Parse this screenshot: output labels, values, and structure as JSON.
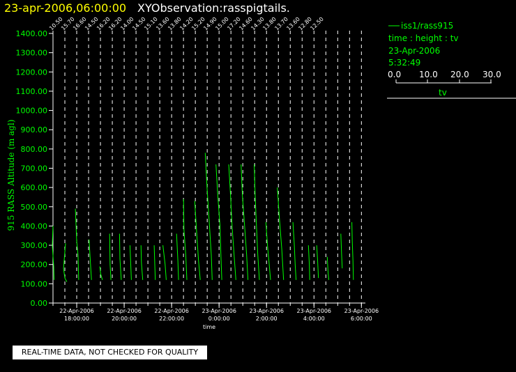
{
  "header": {
    "date_time": "23-apr-2006,06:00:00",
    "title": "XYObservation:rasspigtails."
  },
  "legend": {
    "series_label": "iss1/rass915",
    "axes_desc": "time : height : tv",
    "date": "23-Apr-2006",
    "time": "5:32:49",
    "scale_ticks": [
      "0.0",
      "10.0",
      "20.0",
      "30.0"
    ],
    "scale_label": "tv"
  },
  "notice": "REAL-TIME DATA, NOT CHECKED FOR QUALITY",
  "colors": {
    "data": "#00ff00",
    "text": "#ffffff",
    "date": "#ffff00",
    "background": "#000000"
  },
  "chart_data": {
    "type": "line",
    "ylabel": "915 RASS Altitude (m agl)",
    "xlabel": "time",
    "ylim": [
      0,
      1400
    ],
    "yticks": [
      "0.00",
      "100.00",
      "200.00",
      "300.00",
      "400.00",
      "500.00",
      "600.00",
      "700.00",
      "800.00",
      "900.00",
      "1000.00",
      "1100.00",
      "1200.00",
      "1300.00",
      "1400.00"
    ],
    "xlim": [
      "22-Apr-2006 17:00:00",
      "23-Apr-2006 06:10:00"
    ],
    "xticks": [
      {
        "t": "22-Apr-2006 18:00:00",
        "date": "22-Apr-2006",
        "time": "18:00:00"
      },
      {
        "t": "22-Apr-2006 20:00:00",
        "date": "22-Apr-2006",
        "time": "20:00:00"
      },
      {
        "t": "22-Apr-2006 22:00:00",
        "date": "22-Apr-2006",
        "time": "22:00:00"
      },
      {
        "t": "23-Apr-2006 00:00:00",
        "date": "23-Apr-2006",
        "time": "0:00:00"
      },
      {
        "t": "23-Apr-2006 02:00:00",
        "date": "23-Apr-2006",
        "time": "2:00:00"
      },
      {
        "t": "23-Apr-2006 04:00:00",
        "date": "23-Apr-2006",
        "time": "4:00:00"
      },
      {
        "t": "23-Apr-2006 06:00:00",
        "date": "23-Apr-2006",
        "time": "6:00:00"
      }
    ],
    "profiles": [
      {
        "time": "22-Apr-2006 17:00:00",
        "label": "10.50",
        "points": [
          [
            400,
            0.0
          ],
          [
            300,
            -0.3
          ],
          [
            190,
            0.3
          ],
          [
            120,
            0.5
          ]
        ]
      },
      {
        "time": "22-Apr-2006 17:30:00",
        "label": "15.70",
        "points": [
          [
            310,
            0.3
          ],
          [
            180,
            -0.6
          ],
          [
            130,
            0.0
          ],
          [
            110,
            0.9
          ]
        ]
      },
      {
        "time": "22-Apr-2006 18:00:00",
        "label": "16.60",
        "points": [
          [
            490,
            -0.6
          ],
          [
            320,
            0.0
          ],
          [
            250,
            0.6
          ],
          [
            120,
            0.9
          ]
        ]
      },
      {
        "time": "22-Apr-2006 18:30:00",
        "label": "14.50",
        "points": [
          [
            330,
            0.2
          ],
          [
            250,
            0.6
          ],
          [
            120,
            1.3
          ]
        ]
      },
      {
        "time": "22-Apr-2006 19:00:00",
        "label": "16.20",
        "points": [
          [
            190,
            -0.3
          ],
          [
            150,
            0.1
          ],
          [
            120,
            0.9
          ]
        ]
      },
      {
        "time": "22-Apr-2006 19:30:00",
        "label": "16.20",
        "points": [
          [
            360,
            -1.2
          ],
          [
            200,
            -1.0
          ],
          [
            120,
            -0.6
          ]
        ]
      },
      {
        "time": "22-Apr-2006 20:00:00",
        "label": "14.00",
        "points": [
          [
            360,
            -2.1
          ],
          [
            230,
            -1.9
          ],
          [
            120,
            -1.3
          ]
        ]
      },
      {
        "time": "22-Apr-2006 20:30:00",
        "label": "14.50",
        "points": [
          [
            300,
            -2.7
          ],
          [
            120,
            -2.1
          ]
        ]
      },
      {
        "time": "22-Apr-2006 21:00:00",
        "label": "15.10",
        "points": [
          [
            300,
            -3.1
          ],
          [
            210,
            -2.9
          ],
          [
            120,
            -2.3
          ]
        ]
      },
      {
        "time": "22-Apr-2006 21:30:00",
        "label": "13.60",
        "points": [
          [
            300,
            -2.5
          ],
          [
            120,
            -2.0
          ]
        ]
      },
      {
        "time": "22-Apr-2006 22:00:00",
        "label": "13.80",
        "points": [
          [
            300,
            -3.9
          ],
          [
            200,
            -2.9
          ],
          [
            120,
            -2.4
          ]
        ]
      },
      {
        "time": "22-Apr-2006 22:30:00",
        "label": "14.20",
        "points": [
          [
            360,
            -3.1
          ],
          [
            220,
            -2.5
          ],
          [
            120,
            -2.2
          ]
        ]
      },
      {
        "time": "22-Apr-2006 23:00:00",
        "label": "15.20",
        "points": [
          [
            540,
            -5.3
          ],
          [
            380,
            -5.1
          ],
          [
            250,
            -4.3
          ],
          [
            120,
            -3.8
          ]
        ]
      },
      {
        "time": "22-Apr-2006 23:30:00",
        "label": "14.90",
        "points": [
          [
            530,
            -5.6
          ],
          [
            380,
            -4.8
          ],
          [
            220,
            -3.9
          ],
          [
            120,
            -3.1
          ]
        ]
      },
      {
        "time": "23-Apr-2006 00:00:00",
        "label": "15.00",
        "points": [
          [
            780,
            -6.2
          ],
          [
            600,
            -5.4
          ],
          [
            420,
            -4.4
          ],
          [
            250,
            -3.5
          ],
          [
            120,
            -3.1
          ]
        ]
      },
      {
        "time": "23-Apr-2006 00:30:00",
        "label": "17.20",
        "points": [
          [
            720,
            -6.7
          ],
          [
            560,
            -5.9
          ],
          [
            400,
            -4.9
          ],
          [
            250,
            -4.5
          ],
          [
            120,
            -4.1
          ]
        ]
      },
      {
        "time": "23-Apr-2006 01:00:00",
        "label": "14.60",
        "points": [
          [
            720,
            -6.3
          ],
          [
            560,
            -5.5
          ],
          [
            400,
            -4.8
          ],
          [
            250,
            -3.9
          ],
          [
            120,
            -3.1
          ]
        ]
      },
      {
        "time": "23-Apr-2006 01:30:00",
        "label": "14.30",
        "points": [
          [
            720,
            -6.1
          ],
          [
            560,
            -5.5
          ],
          [
            400,
            -4.5
          ],
          [
            250,
            -3.6
          ],
          [
            120,
            -3.0
          ]
        ]
      },
      {
        "time": "23-Apr-2006 02:00:00",
        "label": "13.80",
        "points": [
          [
            720,
            -5.5
          ],
          [
            560,
            -5.1
          ],
          [
            400,
            -4.5
          ],
          [
            250,
            -3.9
          ],
          [
            120,
            -3.2
          ]
        ]
      },
      {
        "time": "23-Apr-2006 02:30:00",
        "label": "13.70",
        "points": [
          [
            420,
            -5.6
          ],
          [
            300,
            -4.9
          ],
          [
            200,
            -4.1
          ],
          [
            120,
            -3.5
          ]
        ]
      },
      {
        "time": "23-Apr-2006 03:00:00",
        "label": "13.60",
        "points": [
          [
            600,
            -5.8
          ],
          [
            430,
            -4.8
          ],
          [
            280,
            -3.8
          ],
          [
            120,
            -3.0
          ]
        ]
      },
      {
        "time": "23-Apr-2006 03:30:00",
        "label": "12.80",
        "points": [
          [
            420,
            -4.1
          ],
          [
            300,
            -3.5
          ],
          [
            200,
            -3.1
          ],
          [
            120,
            -2.7
          ]
        ]
      },
      {
        "time": "23-Apr-2006 04:00:00",
        "label": "12.50",
        "points": [
          [
            300,
            -2.5
          ],
          [
            200,
            -2.1
          ],
          [
            120,
            -1.9
          ]
        ]
      },
      {
        "time": "23-Apr-2006 04:30:00",
        "label": "",
        "points": [
          [
            300,
            -4.1
          ],
          [
            220,
            -3.7
          ],
          [
            130,
            -3.3
          ]
        ]
      },
      {
        "time": "23-Apr-2006 05:00:00",
        "label": "",
        "points": [
          [
            240,
            -4.7
          ],
          [
            160,
            -4.3
          ],
          [
            120,
            -4.0
          ]
        ]
      },
      {
        "time": "23-Apr-2006 05:30:00",
        "label": "",
        "points": [
          [
            360,
            -3.9
          ],
          [
            260,
            -3.6
          ],
          [
            180,
            -3.3
          ]
        ]
      },
      {
        "time": "23-Apr-2006 06:00:00",
        "label": "",
        "points": [
          [
            420,
            -4.3
          ],
          [
            320,
            -4.1
          ],
          [
            220,
            -3.8
          ],
          [
            120,
            -3.6
          ]
        ]
      }
    ]
  }
}
